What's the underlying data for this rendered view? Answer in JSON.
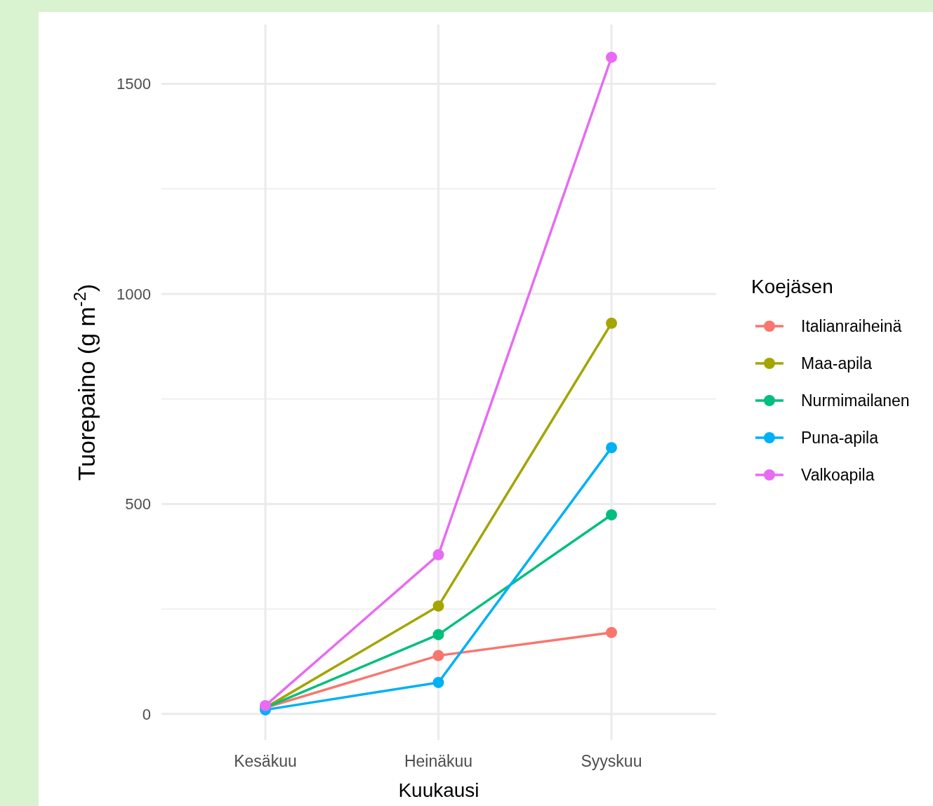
{
  "chart_data": {
    "type": "line",
    "xlabel": "Kuukausi",
    "ylabel": "Tuorepaino (g m$^{-2}$)",
    "legend_title": "Koejäsen",
    "categories": [
      "Kesäkuu",
      "Heinäkuu",
      "Syyskuu"
    ],
    "series": [
      {
        "name": "Italianraiheinä",
        "color": "#f8766d",
        "values": [
          15,
          139,
          194
        ]
      },
      {
        "name": "Maa-apila",
        "color": "#a3a500",
        "values": [
          15,
          257,
          930
        ]
      },
      {
        "name": "Nurmimailanen",
        "color": "#00bf7d",
        "values": [
          15,
          189,
          474
        ]
      },
      {
        "name": "Puna-apila",
        "color": "#00b0f6",
        "values": [
          10,
          75,
          634
        ]
      },
      {
        "name": "Valkoapila",
        "color": "#e76bf3",
        "values": [
          20,
          379,
          1563
        ]
      }
    ],
    "ylim": [
      -62,
      1641
    ],
    "yticks": [
      0,
      {
        "value": 250,
        "label": null
      },
      500,
      {
        "value": 750,
        "label": null
      },
      1000,
      {
        "value": 1250,
        "label": null
      },
      1500
    ],
    "grid": true,
    "legend": "right",
    "marker": "circle",
    "line_style": "solid"
  }
}
